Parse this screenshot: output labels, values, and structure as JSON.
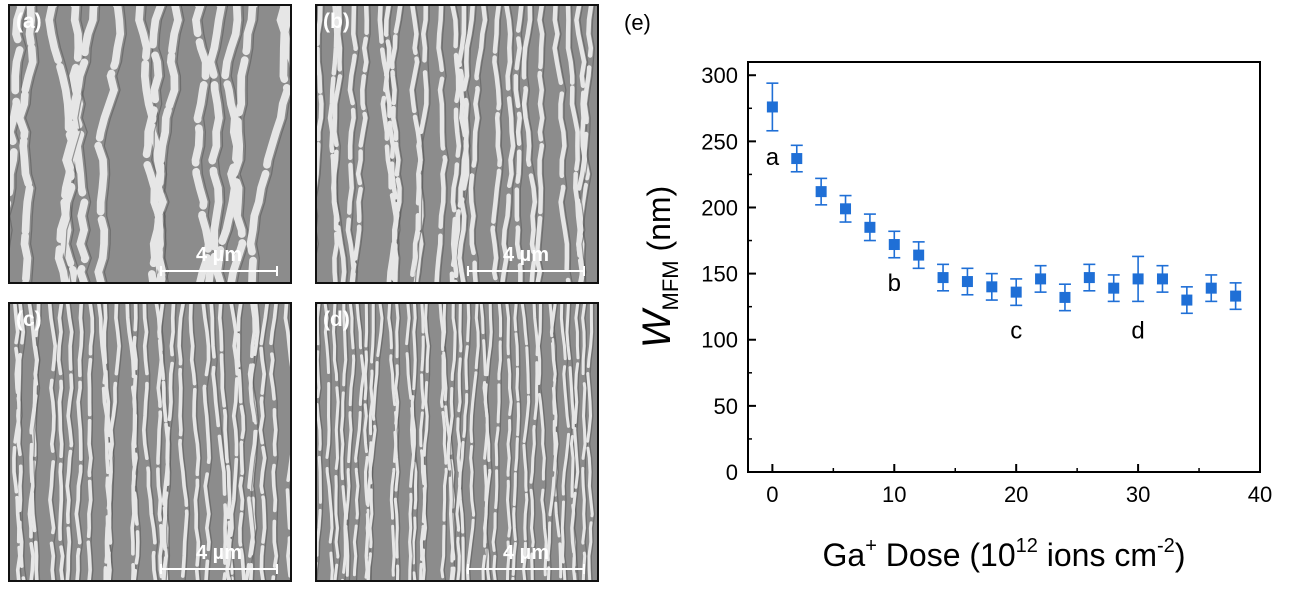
{
  "panels": [
    {
      "label": "(a)",
      "scale": "4 µm",
      "density": 14
    },
    {
      "label": "(b)",
      "scale": "4 µm",
      "density": 24
    },
    {
      "label": "(c)",
      "scale": "4 µm",
      "density": 30
    },
    {
      "label": "(d)",
      "scale": "4 µm",
      "density": 36
    }
  ],
  "chart_data": {
    "type": "scatter",
    "panel_label": "(e)",
    "ylabel_main": "W",
    "ylabel_sub": "MFM",
    "ylabel_unit": " (nm)",
    "xlabel_pre": "Ga",
    "xlabel_sup1": "+",
    "xlabel_mid": " Dose (10",
    "xlabel_sup2": "12",
    "xlabel_mid2": " ions cm",
    "xlabel_sup3": "-2",
    "xlabel_end": ")",
    "xlim": [
      -2,
      40
    ],
    "ylim": [
      0,
      310
    ],
    "xticks": [
      0,
      10,
      20,
      30,
      40
    ],
    "yticks": [
      0,
      50,
      100,
      150,
      200,
      250,
      300
    ],
    "color": "#1f6fd6",
    "points": [
      {
        "x": 0,
        "y": 276,
        "err": 18
      },
      {
        "x": 2,
        "y": 237,
        "err": 10
      },
      {
        "x": 4,
        "y": 212,
        "err": 10
      },
      {
        "x": 6,
        "y": 199,
        "err": 10
      },
      {
        "x": 8,
        "y": 185,
        "err": 10
      },
      {
        "x": 10,
        "y": 172,
        "err": 10
      },
      {
        "x": 12,
        "y": 164,
        "err": 10
      },
      {
        "x": 14,
        "y": 147,
        "err": 10
      },
      {
        "x": 16,
        "y": 144,
        "err": 10
      },
      {
        "x": 18,
        "y": 140,
        "err": 10
      },
      {
        "x": 20,
        "y": 136,
        "err": 10
      },
      {
        "x": 22,
        "y": 146,
        "err": 10
      },
      {
        "x": 24,
        "y": 132,
        "err": 10
      },
      {
        "x": 26,
        "y": 147,
        "err": 10
      },
      {
        "x": 28,
        "y": 139,
        "err": 10
      },
      {
        "x": 30,
        "y": 146,
        "err": 17
      },
      {
        "x": 32,
        "y": 146,
        "err": 10
      },
      {
        "x": 34,
        "y": 130,
        "err": 10
      },
      {
        "x": 36,
        "y": 139,
        "err": 10
      },
      {
        "x": 38,
        "y": 133,
        "err": 10
      }
    ],
    "annotations": [
      {
        "text": "a",
        "x": 0,
        "y": 232
      },
      {
        "text": "b",
        "x": 10,
        "y": 137
      },
      {
        "text": "c",
        "x": 20,
        "y": 101
      },
      {
        "text": "d",
        "x": 30,
        "y": 101
      }
    ]
  }
}
